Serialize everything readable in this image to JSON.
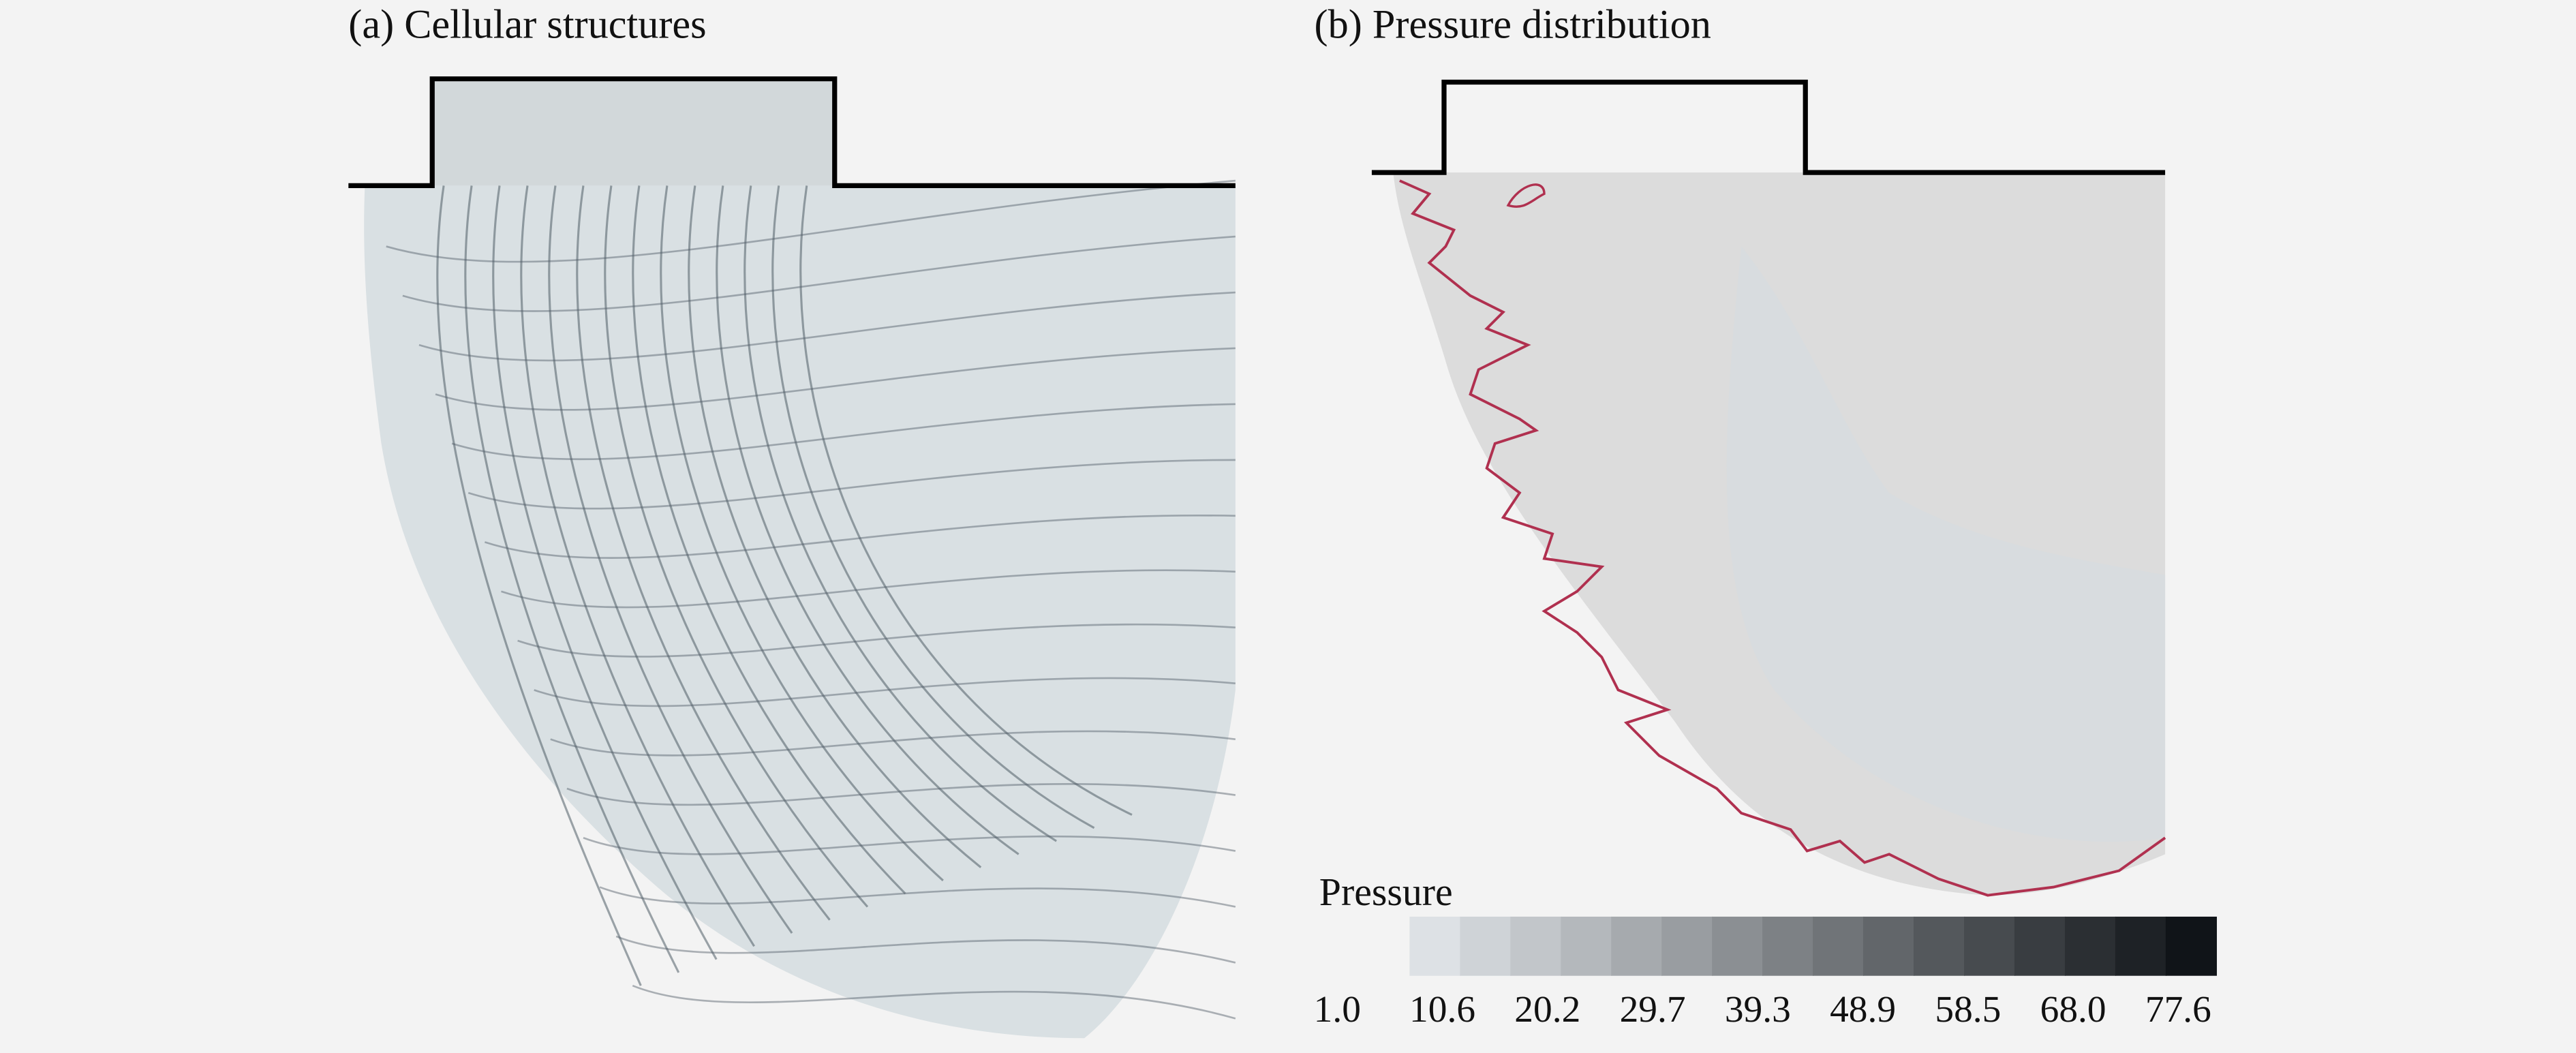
{
  "figure": {
    "panels": [
      {
        "title": "(a) Cellular structures"
      },
      {
        "title": "(b) Pressure distribution"
      }
    ],
    "colorbar": {
      "label": "Pressure",
      "ticks": [
        "1.0",
        "10.6",
        "20.2",
        "29.7",
        "39.3",
        "48.9",
        "58.5",
        "68.0",
        "77.6"
      ]
    }
  }
}
